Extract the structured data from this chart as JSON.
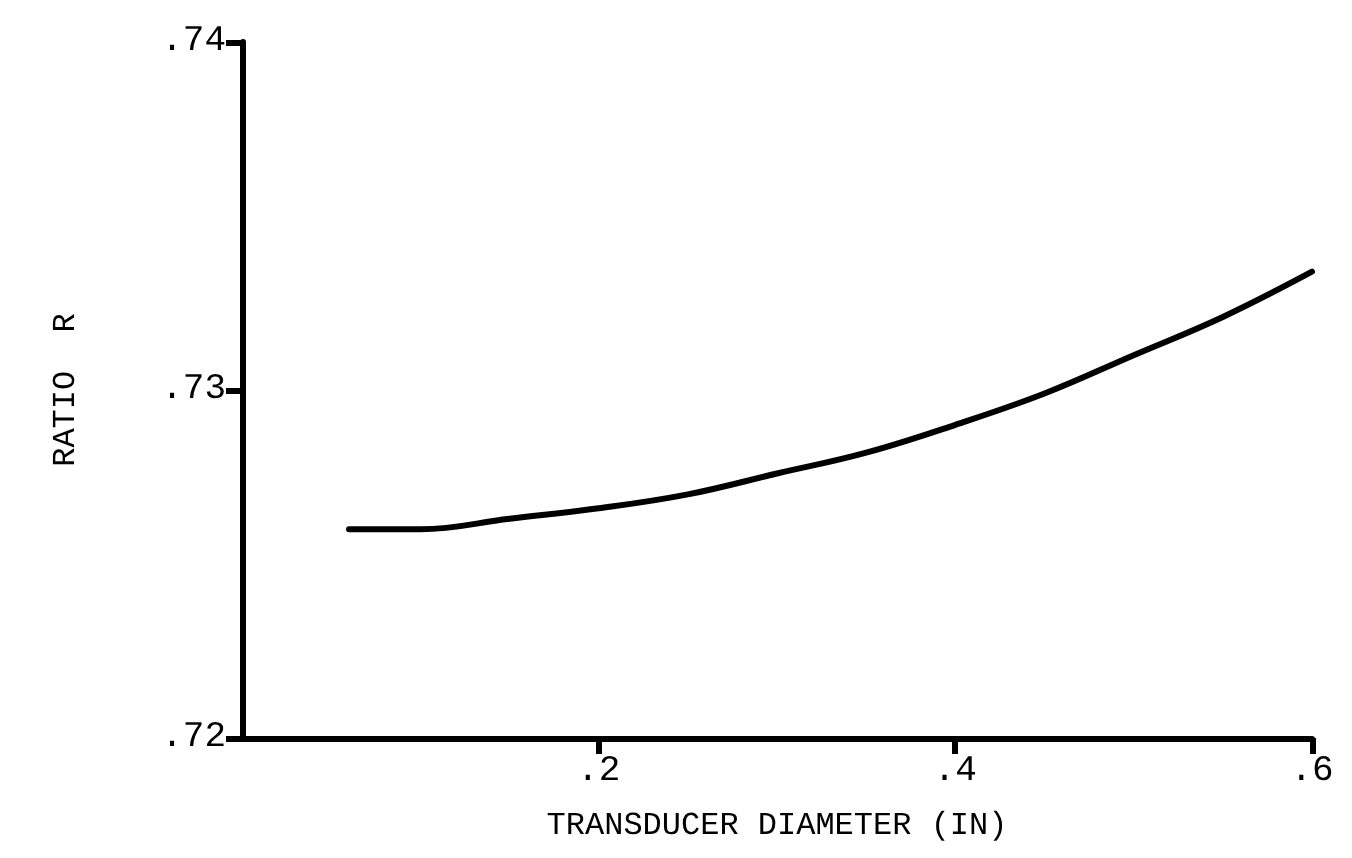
{
  "chart_data": {
    "type": "line",
    "xlabel": "TRANSDUCER DIAMETER (IN)",
    "ylabel": "RATIO  R",
    "x": [
      0.06,
      0.1,
      0.15,
      0.2,
      0.25,
      0.3,
      0.35,
      0.4,
      0.45,
      0.5,
      0.55,
      0.6
    ],
    "series": [
      {
        "color": "#000000",
        "values": [
          0.726,
          0.726,
          0.7263,
          0.7266,
          0.727,
          0.7276,
          0.7282,
          0.729,
          0.7299,
          0.731,
          0.7321,
          0.7334
        ]
      }
    ],
    "xlim": [
      0,
      0.6
    ],
    "xticks": [
      {
        "value": 0.2,
        "label": ".2"
      },
      {
        "value": 0.4,
        "label": ".4"
      },
      {
        "value": 0.6,
        "label": ".6"
      }
    ],
    "ylim": [
      0.72,
      0.74
    ],
    "yticks": [
      {
        "value": 0.72,
        "label": ".72"
      },
      {
        "value": 0.73,
        "label": ".73"
      },
      {
        "value": 0.74,
        "label": ".74"
      }
    ],
    "grid": false,
    "marker": "none",
    "line_style": "solid"
  }
}
